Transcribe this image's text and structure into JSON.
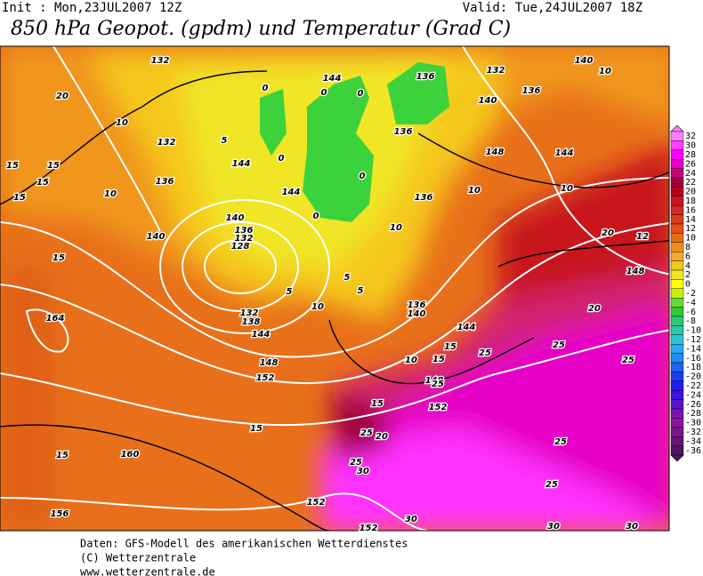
{
  "header": {
    "init": "Init : Mon,23JUL2007 12Z",
    "valid": "Valid: Tue,24JUL2007 18Z",
    "title": "850 hPa Geopot. (gpdm) und Temperatur (Grad C)"
  },
  "legend": {
    "labels": [
      32,
      30,
      28,
      26,
      24,
      22,
      20,
      18,
      16,
      14,
      12,
      10,
      8,
      6,
      4,
      2,
      0,
      -2,
      -4,
      -6,
      -8,
      -10,
      -12,
      -14,
      -16,
      -18,
      -20,
      -22,
      -24,
      -26,
      -28,
      -30,
      -32,
      -34,
      -36
    ],
    "colors": [
      "#ff80ff",
      "#ff40ff",
      "#ff00ff",
      "#e600c8",
      "#c8007a",
      "#a0003c",
      "#b4001e",
      "#c8141e",
      "#d22828",
      "#dc3c14",
      "#e65014",
      "#e66e14",
      "#f08c1e",
      "#f5aa28",
      "#f5c81e",
      "#f5e61e",
      "#ffff00",
      "#c8f000",
      "#64dc32",
      "#32c832",
      "#28c878",
      "#28c8aa",
      "#28c8d2",
      "#28aaf0",
      "#1e8cf0",
      "#1e64f0",
      "#1e3cf0",
      "#1e1ef0",
      "#3c14dc",
      "#5a14c8",
      "#7814b4",
      "#8c14a0",
      "#78148c",
      "#641478",
      "#501464"
    ]
  },
  "contour_labels": [
    132,
    144,
    136,
    132,
    140,
    10,
    20,
    0,
    0,
    0,
    136,
    140,
    10,
    136,
    132,
    5,
    144,
    148,
    15,
    15,
    144,
    0,
    0,
    136,
    15,
    10,
    10,
    144,
    10,
    15,
    136,
    140,
    0,
    136,
    132,
    128,
    10,
    140,
    12,
    20,
    15,
    5,
    10,
    5,
    5,
    136,
    140,
    132,
    138,
    144,
    164,
    144,
    20,
    148,
    148,
    15,
    25,
    25,
    10,
    15,
    148,
    25,
    152,
    25,
    15,
    152,
    25,
    20,
    15,
    160,
    15,
    25,
    25,
    30,
    25,
    152,
    156,
    30,
    152,
    30,
    30
  ],
  "footer": [
    "Daten: GFS-Modell des amerikanischen Wetterdienstes",
    "(C) Wetterzentrale",
    "www.wetterzentrale.de"
  ]
}
